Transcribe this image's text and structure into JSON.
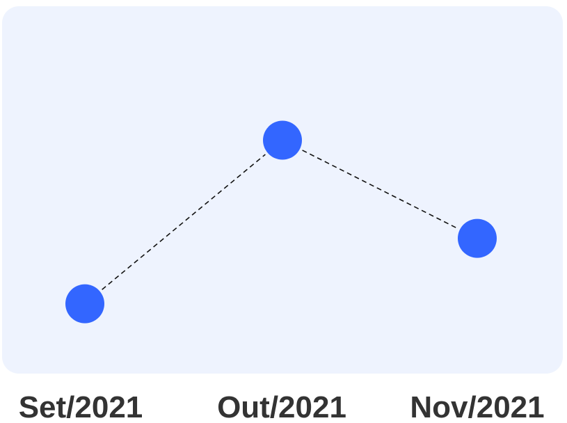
{
  "chart_data": {
    "type": "line",
    "categories": [
      "Set/2021",
      "Out/2021",
      "Nov/2021"
    ],
    "values": [
      1,
      4,
      2.2
    ],
    "ylim": [
      0,
      5.5
    ],
    "grid": false,
    "line_style": "dashed",
    "colors": {
      "panel_background": "#eef3fe",
      "marker": "#3366ff",
      "line": "#111111",
      "tick_label": "#333333"
    }
  }
}
